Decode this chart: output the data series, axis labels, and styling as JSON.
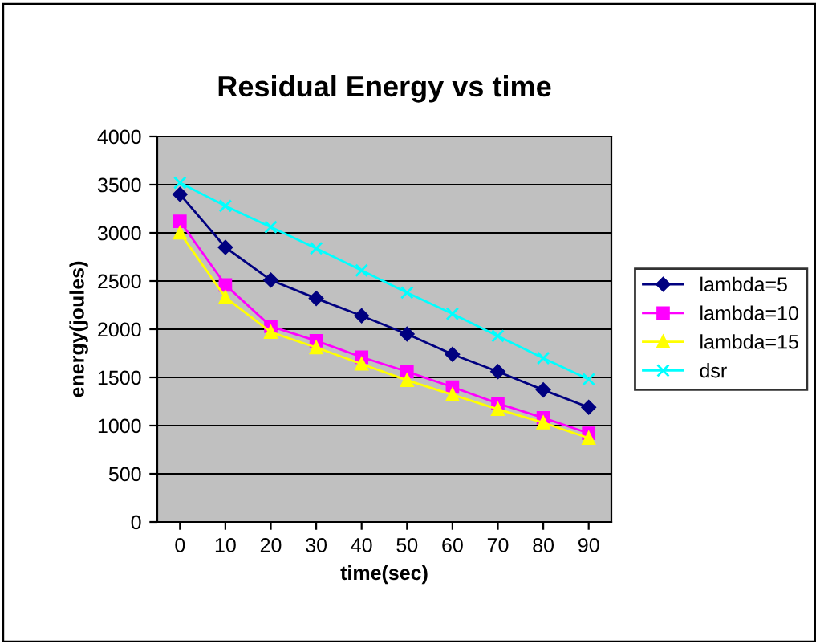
{
  "chart_data": {
    "type": "line",
    "title": "Residual Energy vs time",
    "xlabel": "time(sec)",
    "ylabel": "energy(joules)",
    "categories": [
      "0",
      "10",
      "20",
      "30",
      "40",
      "50",
      "60",
      "70",
      "80",
      "90"
    ],
    "series": [
      {
        "name": "lambda=5",
        "color": "#000080",
        "marker": "diamond",
        "values": [
          3400,
          2850,
          2510,
          2320,
          2140,
          1950,
          1740,
          1560,
          1370,
          1190
        ]
      },
      {
        "name": "lambda=10",
        "color": "#ff00ff",
        "marker": "square",
        "values": [
          3120,
          2460,
          2030,
          1880,
          1710,
          1560,
          1400,
          1230,
          1080,
          920
        ]
      },
      {
        "name": "lambda=15",
        "color": "#ffff00",
        "marker": "triangle",
        "values": [
          3000,
          2330,
          1970,
          1810,
          1640,
          1470,
          1320,
          1170,
          1030,
          870
        ]
      },
      {
        "name": "dsr",
        "color": "#00ffff",
        "marker": "cross",
        "values": [
          3520,
          3280,
          3060,
          2840,
          2610,
          2380,
          2160,
          1930,
          1700,
          1480
        ]
      }
    ],
    "ylim": [
      0,
      4000
    ],
    "yticks": [
      0,
      500,
      1000,
      1500,
      2000,
      2500,
      3000,
      3500,
      4000
    ],
    "grid": "y",
    "legend": "right"
  }
}
